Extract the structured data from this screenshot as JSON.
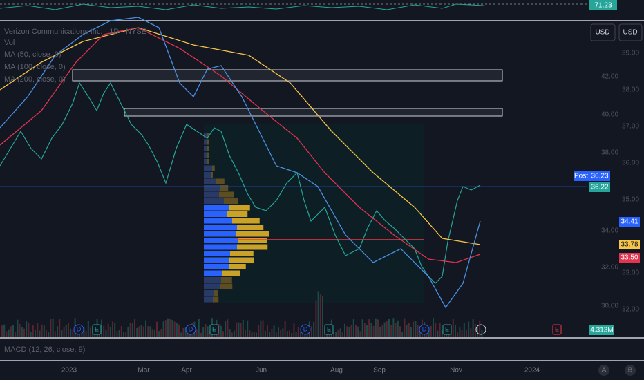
{
  "indicator_top": {
    "value": "71.23"
  },
  "legend": {
    "title": "Verizon Communications Inc. · 1D · NYSE",
    "vol": "Vol",
    "ma1": "MA (50, close, 0)",
    "ma2": "MA (100, close, 0)",
    "ma3": "MA (200, close, 0)"
  },
  "currency_buttons": [
    "USD",
    "USD"
  ],
  "price_axis": [
    "39.00",
    "42.00",
    "38.00",
    "40.00",
    "37.00",
    "38.00",
    "36.00",
    "35.00",
    "34.00",
    "33.00",
    "32.00",
    "30.00",
    "32.00"
  ],
  "badges": {
    "post_label": "Post",
    "post_value": "36.23",
    "last": "36.22",
    "ma_blue": "34.41",
    "ma_yellow": "33.78",
    "ma_red": "33.50",
    "volume": "4.313M"
  },
  "events": [
    "D",
    "E",
    "D",
    "E",
    "D",
    "E",
    "D",
    "E",
    "E"
  ],
  "macd": {
    "label": "MACD (12, 26, close, 9)"
  },
  "time_axis": [
    "2023",
    "Mar",
    "Apr",
    "Jun",
    "Aug",
    "Sep",
    "Nov",
    "2024"
  ],
  "corner_buttons": [
    "A",
    "B"
  ]
}
